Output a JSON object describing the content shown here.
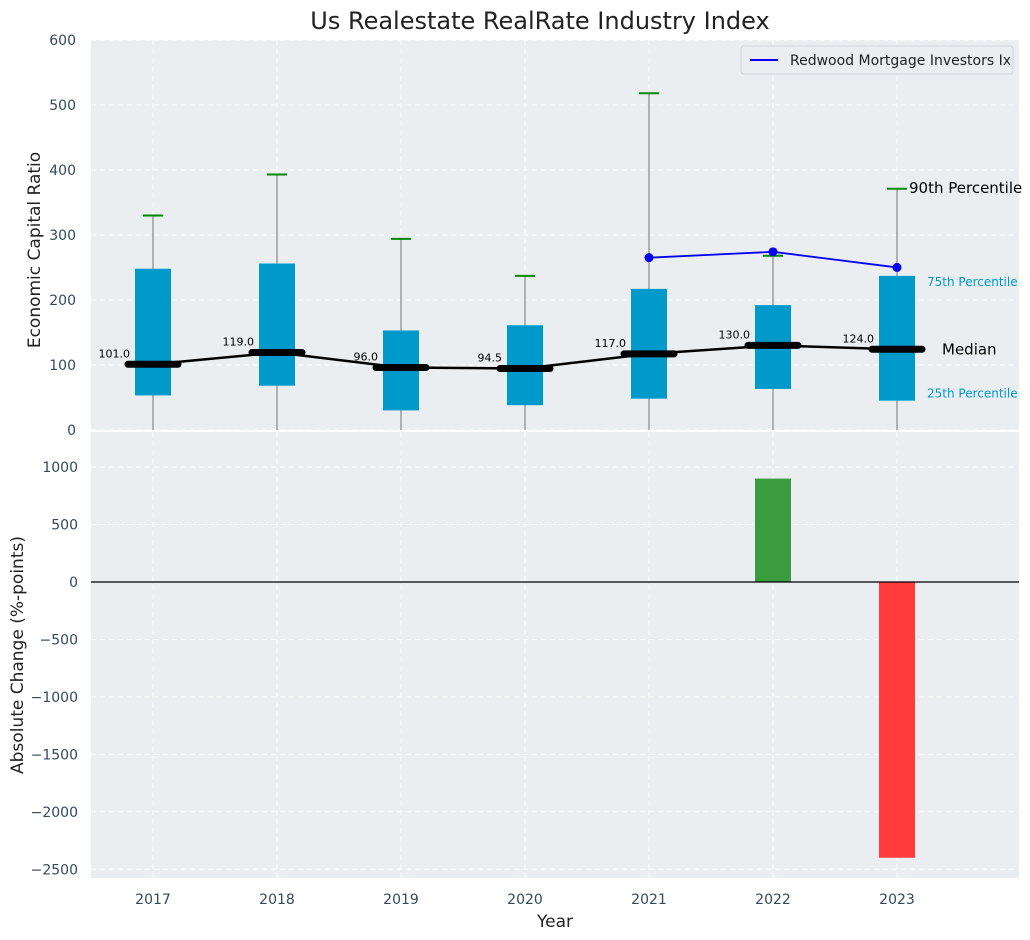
{
  "chart_data": {
    "type": "box-and-bar",
    "title": "Us Realestate RealRate Industry Index",
    "xlabel": "Year",
    "categories": [
      "2017",
      "2018",
      "2019",
      "2020",
      "2021",
      "2022",
      "2023"
    ],
    "top_panel": {
      "ylabel": "Economic Capital Ratio",
      "ylim": [
        -50,
        600
      ],
      "yticks": [
        0,
        100,
        200,
        300,
        400,
        500,
        600
      ],
      "grid": true,
      "boxes": [
        {
          "year": "2017",
          "p10": -60,
          "p25": 53,
          "median": 101.0,
          "p75": 248,
          "p90": 330
        },
        {
          "year": "2018",
          "p10": -60,
          "p25": 68,
          "median": 119.0,
          "p75": 256,
          "p90": 393
        },
        {
          "year": "2019",
          "p10": -60,
          "p25": 30,
          "median": 96.0,
          "p75": 153,
          "p90": 294
        },
        {
          "year": "2020",
          "p10": -37,
          "p25": 38,
          "median": 94.5,
          "p75": 161,
          "p90": 237
        },
        {
          "year": "2021",
          "p10": -34,
          "p25": 48,
          "median": 117.0,
          "p75": 217,
          "p90": 518
        },
        {
          "year": "2022",
          "p10": -14,
          "p25": 63,
          "median": 130.0,
          "p75": 192,
          "p90": 268
        },
        {
          "year": "2023",
          "p10": -60,
          "p25": 45,
          "median": 124.0,
          "p75": 237,
          "p90": 371
        }
      ],
      "median_labels": [
        "101.0",
        "119.0",
        "96.0",
        "94.5",
        "117.0",
        "130.0",
        "124.0"
      ],
      "company_series": {
        "name": "Redwood Mortgage Investors Ix",
        "x": [
          "2021",
          "2022",
          "2023"
        ],
        "values": [
          265,
          274,
          250
        ]
      },
      "annotations": {
        "p90": "90th Percentile",
        "p75": "75th Percentile",
        "median": "Median",
        "p25": "25th Percentile"
      },
      "legend_placement": "top-right"
    },
    "bottom_panel": {
      "ylabel": "Absolute Change (%-points)",
      "ylim": [
        -2550,
        1080
      ],
      "yticks": [
        -2500,
        -2000,
        -1500,
        -1000,
        -500,
        0,
        500,
        1000
      ],
      "grid": true,
      "bars": [
        {
          "year": "2022",
          "value": 900,
          "color": "#3a9b3f"
        },
        {
          "year": "2023",
          "value": -2400,
          "color": "#ff3b3b"
        }
      ]
    },
    "colors": {
      "box": "#0099cc",
      "median_line": "#000000",
      "whisker": "#888888",
      "cap_high": "#008800",
      "cap_low": "#dd0000",
      "company_line": "#0000ee",
      "panel_bg": "#eaeef0",
      "positive_bar": "#3a9b3f",
      "negative_bar": "#ff3b3b"
    }
  }
}
